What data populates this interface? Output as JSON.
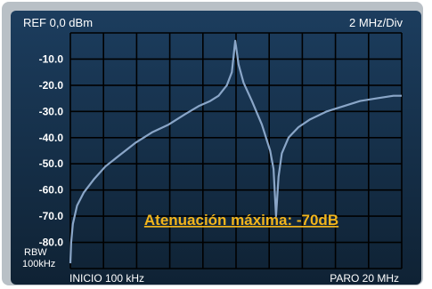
{
  "header": {
    "ref_label": "REF 0,0 dBm",
    "div_label": "2 MHz/Div"
  },
  "footer": {
    "start_label": "INICIO 100 kHz",
    "stop_label": "PARO 20 MHz"
  },
  "rbw": {
    "line1": "RBW",
    "line2": "100kHz"
  },
  "annotation": "Atenuación máxima: -70dB",
  "colors": {
    "trace": "#8aa6c8",
    "annotation": "#f2b51c",
    "grid": "#000000"
  },
  "chart_data": {
    "type": "line",
    "title": "",
    "xlabel": "",
    "ylabel": "",
    "xlim": [
      0.1,
      20
    ],
    "ylim": [
      -90,
      0
    ],
    "x_divisions": 10,
    "y_ticks": [
      -10,
      -20,
      -30,
      -40,
      -50,
      -60,
      -70,
      -80
    ],
    "y_tick_labels": [
      "-10.0",
      "-20.0",
      "-30.0",
      "-40.0",
      "-50.0",
      "-60.0",
      "-70.0",
      "-80.0"
    ],
    "grid": true,
    "series": [
      {
        "x": [
          0.1,
          0.15,
          0.25,
          0.5,
          0.9,
          1.5,
          2.2,
          3.0,
          4.0,
          5.0,
          6.0,
          7.0,
          7.8,
          8.5,
          9.0,
          9.5,
          9.8,
          10.0,
          10.2,
          10.5,
          11.0,
          11.6,
          12.1,
          12.3,
          12.45,
          12.6,
          12.8,
          13.2,
          13.8,
          14.5,
          15.5,
          16.5,
          17.5,
          18.5,
          19.5,
          20.0
        ],
        "y": [
          -88,
          -80,
          -73,
          -66,
          -61,
          -56,
          -51,
          -47,
          -42,
          -38,
          -35,
          -31,
          -28,
          -26,
          -24,
          -20,
          -15,
          -3,
          -12,
          -19,
          -26,
          -35,
          -45,
          -52,
          -70,
          -55,
          -46,
          -40,
          -36,
          -33,
          -30,
          -28,
          -26,
          -25,
          -24,
          -24
        ]
      }
    ],
    "annotations": [
      {
        "text": "Atenuación máxima: -70dB"
      }
    ]
  }
}
